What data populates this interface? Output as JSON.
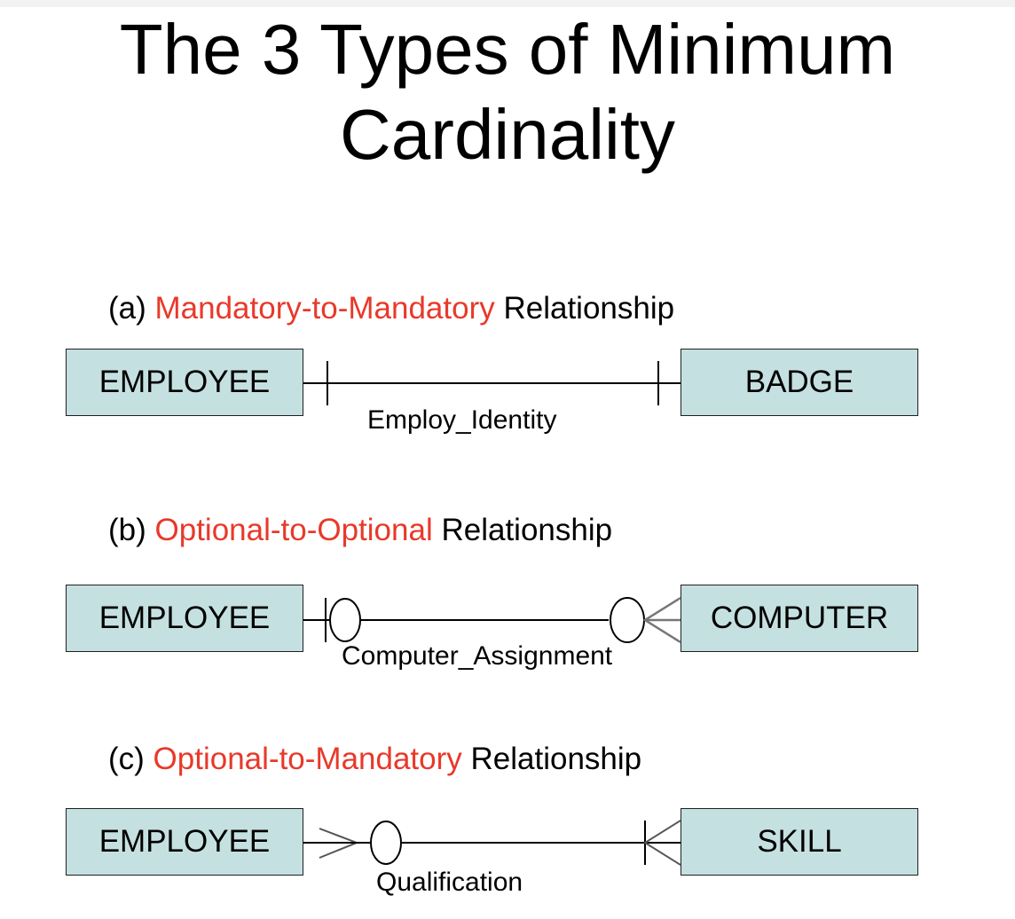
{
  "title": {
    "line1": "The 3 Types of Minimum",
    "line2": "Cardinality"
  },
  "colors": {
    "highlight": "#e8392a",
    "entity_fill": "#c5e0e0"
  },
  "sections": [
    {
      "prefix": "(a) ",
      "highlight": "Mandatory-to-Mandatory",
      "suffix": " Relationship",
      "left_entity": "EMPLOYEE",
      "right_entity": "BADGE",
      "relationship": "Employ_Identity"
    },
    {
      "prefix": "(b) ",
      "highlight": "Optional-to-Optional",
      "suffix": " Relationship",
      "left_entity": "EMPLOYEE",
      "right_entity": "COMPUTER",
      "relationship": "Computer_Assignment"
    },
    {
      "prefix": "(c) ",
      "highlight": "Optional-to-Mandatory",
      "suffix": " Relationship",
      "left_entity": "EMPLOYEE",
      "right_entity": "SKILL",
      "relationship": "Qualification"
    }
  ]
}
